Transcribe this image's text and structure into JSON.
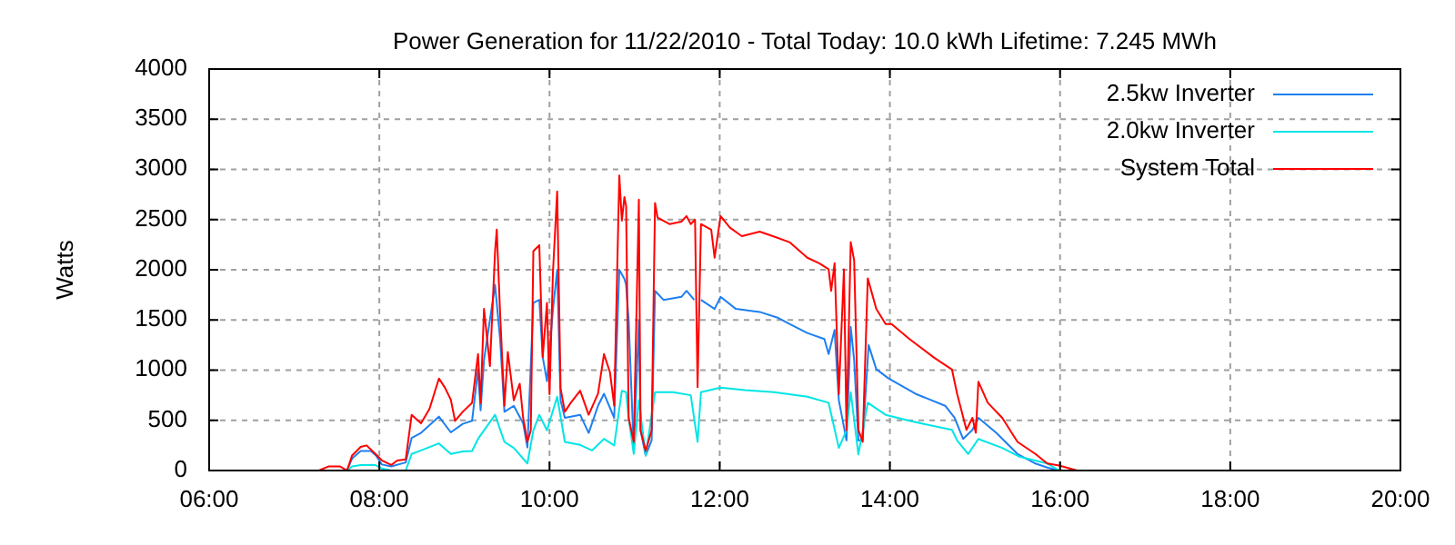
{
  "chart_data": {
    "type": "line",
    "title": "Power Generation for 11/22/2010 - Total Today: 10.0 kWh   Lifetime: 7.245 MWh",
    "ylabel": "Watts",
    "xlim": [
      6,
      20
    ],
    "xticks": [
      {
        "value": 6,
        "label": "06:00"
      },
      {
        "value": 8,
        "label": "08:00"
      },
      {
        "value": 10,
        "label": "10:00"
      },
      {
        "value": 12,
        "label": "12:00"
      },
      {
        "value": 14,
        "label": "14:00"
      },
      {
        "value": 16,
        "label": "16:00"
      },
      {
        "value": 18,
        "label": "18:00"
      },
      {
        "value": 20,
        "label": "20:00"
      }
    ],
    "ylim": [
      0,
      4000
    ],
    "yticks": [
      0,
      500,
      1000,
      1500,
      2000,
      2500,
      3000,
      3500,
      4000
    ],
    "grid": true,
    "legend": "top right",
    "marker": "none",
    "line_style": "solid",
    "series": [
      {
        "name": "2.5kw Inverter",
        "color": "#1e7ff0",
        "x": [
          7.62,
          7.68,
          7.78,
          7.9,
          7.96,
          8.03,
          8.14,
          8.31,
          8.38,
          8.49,
          8.7,
          8.84,
          8.98,
          9.09,
          9.16,
          9.19,
          9.23,
          9.36,
          9.42,
          9.47,
          9.58,
          9.69,
          9.74,
          9.81,
          9.88,
          9.92,
          9.97,
          10.04,
          10.09,
          10.13,
          10.18,
          10.36,
          10.46,
          10.57,
          10.64,
          10.76,
          10.82,
          10.88,
          10.9,
          10.93,
          10.99,
          11.05,
          11.07,
          11.13,
          11.2,
          11.24,
          11.34,
          11.55,
          11.61,
          11.7,
          11.74,
          11.78,
          11.94,
          12.01,
          12.19,
          12.47,
          12.69,
          12.82,
          13.03,
          13.23,
          13.28,
          13.35,
          13.4,
          13.49,
          13.54,
          13.58,
          13.63,
          13.68,
          13.75,
          13.84,
          13.98,
          14.3,
          14.65,
          14.76,
          14.86,
          14.97,
          15.04,
          15.25,
          15.5,
          15.71,
          15.85,
          15.99
        ],
        "values": [
          0,
          120,
          194,
          194,
          150,
          60,
          40,
          80,
          325,
          375,
          537,
          380,
          465,
          495,
          1010,
          600,
          1100,
          1850,
          1300,
          585,
          645,
          470,
          230,
          1670,
          1700,
          1130,
          890,
          1600,
          2000,
          700,
          525,
          555,
          375,
          645,
          765,
          525,
          2000,
          1910,
          1850,
          1500,
          200,
          1490,
          400,
          150,
          300,
          1790,
          1700,
          1730,
          1790,
          1700,
          null,
          1700,
          1610,
          1730,
          1610,
          1580,
          1520,
          1460,
          1370,
          1310,
          1160,
          1400,
          700,
          300,
          1430,
          1100,
          300,
          300,
          1250,
          1010,
          920,
          765,
          645,
          525,
          315,
          405,
          525,
          375,
          165,
          70,
          30,
          0
        ]
      },
      {
        "name": "2.0kw Inverter",
        "color": "#00e5e5",
        "x": [
          7.62,
          7.68,
          7.78,
          7.95,
          8.03,
          8.14,
          8.31,
          8.38,
          8.49,
          8.7,
          8.84,
          8.98,
          9.09,
          9.16,
          9.36,
          9.47,
          9.58,
          9.74,
          9.81,
          9.88,
          9.97,
          10.09,
          10.18,
          10.36,
          10.5,
          10.64,
          10.76,
          10.85,
          10.9,
          10.93,
          10.99,
          11.05,
          11.13,
          11.24,
          11.45,
          11.66,
          11.74,
          11.78,
          12.01,
          12.3,
          12.64,
          13.03,
          13.28,
          13.4,
          13.49,
          13.54,
          13.63,
          13.74,
          13.95,
          14.23,
          14.73,
          14.79,
          14.92,
          15.04,
          15.32,
          15.53,
          15.85,
          15.99
        ],
        "values": [
          0,
          40,
          55,
          55,
          20,
          0,
          0,
          165,
          200,
          270,
          165,
          190,
          195,
          315,
          555,
          285,
          225,
          70,
          400,
          555,
          400,
          735,
          285,
          255,
          200,
          315,
          250,
          795,
          780,
          525,
          165,
          700,
          150,
          780,
          780,
          750,
          285,
          780,
          825,
          800,
          780,
          735,
          675,
          225,
          400,
          780,
          160,
          675,
          555,
          495,
          405,
          300,
          165,
          315,
          225,
          135,
          70,
          0
        ]
      },
      {
        "name": "System Total",
        "color": "#ff0000",
        "x": [
          7.29,
          7.4,
          7.54,
          7.62,
          7.68,
          7.78,
          7.85,
          7.96,
          8.03,
          8.14,
          8.21,
          8.31,
          8.38,
          8.49,
          8.59,
          8.7,
          8.77,
          8.84,
          8.89,
          8.98,
          9.09,
          9.16,
          9.19,
          9.23,
          9.3,
          9.36,
          9.38,
          9.42,
          9.47,
          9.51,
          9.58,
          9.65,
          9.69,
          9.74,
          9.78,
          9.81,
          9.88,
          9.92,
          9.97,
          10,
          10.04,
          10.09,
          10.13,
          10.18,
          10.25,
          10.36,
          10.46,
          10.57,
          10.64,
          10.71,
          10.76,
          10.82,
          10.85,
          10.88,
          10.9,
          10.93,
          10.99,
          11.05,
          11.07,
          11.13,
          11.2,
          11.24,
          11.27,
          11.41,
          11.55,
          11.61,
          11.66,
          11.71,
          11.74,
          11.78,
          11.9,
          11.94,
          12.01,
          12.12,
          12.26,
          12.47,
          12.64,
          12.82,
          13.03,
          13.17,
          13.28,
          13.31,
          13.35,
          13.4,
          13.46,
          13.49,
          13.54,
          13.58,
          13.63,
          13.68,
          13.74,
          13.84,
          13.95,
          14.02,
          14.23,
          14.51,
          14.73,
          14.79,
          14.9,
          14.97,
          15.01,
          15.04,
          15.15,
          15.32,
          15.5,
          15.71,
          15.85,
          15.99,
          16.2
        ],
        "values": [
          0,
          40,
          40,
          0,
          150,
          235,
          250,
          160,
          100,
          55,
          100,
          110,
          555,
          470,
          615,
          917,
          827,
          706,
          494,
          585,
          675,
          1160,
          675,
          1610,
          1040,
          2185,
          2400,
          1550,
          645,
          1180,
          700,
          865,
          525,
          285,
          400,
          2185,
          2245,
          1130,
          1670,
          760,
          1970,
          2780,
          820,
          585,
          675,
          795,
          555,
          765,
          1160,
          980,
          645,
          2940,
          2490,
          2725,
          2635,
          525,
          285,
          2700,
          400,
          195,
          400,
          2665,
          2520,
          2455,
          2480,
          2535,
          2455,
          2500,
          830,
          2455,
          2400,
          2120,
          2535,
          2420,
          2335,
          2380,
          2330,
          2275,
          2120,
          2065,
          2005,
          1790,
          2065,
          760,
          2005,
          400,
          2275,
          2095,
          405,
          285,
          1915,
          1610,
          1460,
          1460,
          1310,
          1130,
          1005,
          765,
          405,
          525,
          375,
          885,
          675,
          525,
          285,
          165,
          70,
          50,
          0
        ]
      }
    ]
  }
}
